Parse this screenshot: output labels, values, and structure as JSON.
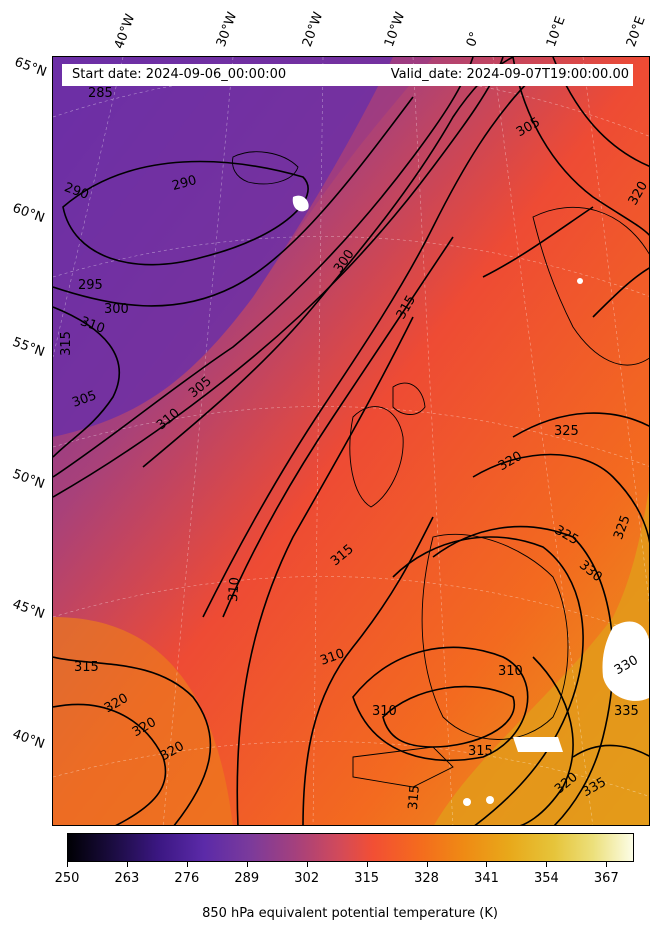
{
  "map": {
    "start_date": "Start date: 2024-09-06_00:00:00",
    "valid_date": "Valid_date: 2024-09-07T19:00:00.00",
    "lon_labels": [
      "40°W",
      "30°W",
      "20°W",
      "10°W",
      "0°",
      "10°E",
      "20°E"
    ],
    "lat_labels": [
      "65°N",
      "60°N",
      "55°N",
      "50°N",
      "45°N",
      "40°N"
    ],
    "contour_labels": [
      "285",
      "290",
      "290",
      "295",
      "295",
      "300",
      "300",
      "305",
      "305",
      "305",
      "310",
      "310",
      "310",
      "310",
      "310",
      "310",
      "315",
      "315",
      "315",
      "315",
      "315",
      "315",
      "320",
      "320",
      "320",
      "320",
      "320",
      "320",
      "325",
      "325",
      "325",
      "330",
      "330",
      "335",
      "335"
    ],
    "colors": {
      "cold": "#5b2aa8",
      "mid": "#f24f34",
      "warm": "#e8a81a",
      "land_contour": "#000000"
    }
  },
  "colorbar": {
    "ticks": [
      "250",
      "263",
      "276",
      "289",
      "302",
      "315",
      "328",
      "341",
      "354",
      "367"
    ],
    "title": "850 hPa equivalent potential temperature (K)",
    "range": [
      250,
      373
    ]
  }
}
